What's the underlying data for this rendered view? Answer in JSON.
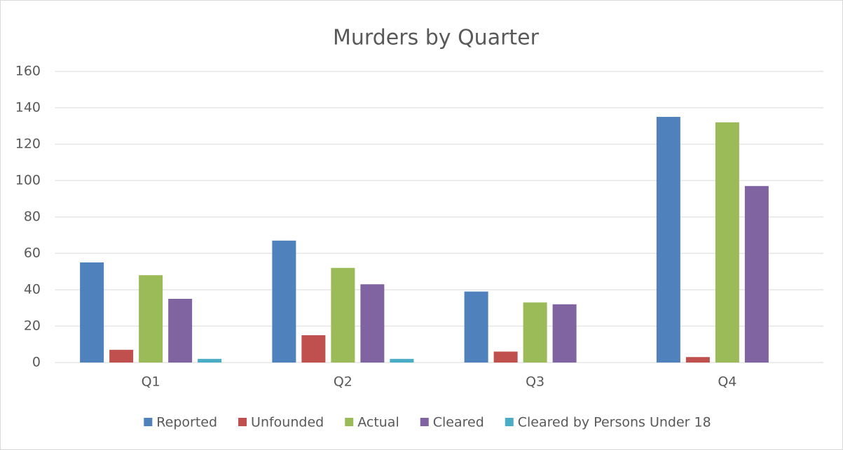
{
  "chart_data": {
    "type": "bar",
    "title": "Murders by Quarter",
    "categories": [
      "Q1",
      "Q2",
      "Q3",
      "Q4"
    ],
    "series": [
      {
        "name": "Reported",
        "color": "#4f81bd",
        "values": [
          55,
          67,
          39,
          135
        ]
      },
      {
        "name": "Unfounded",
        "color": "#c0504d",
        "values": [
          7,
          15,
          6,
          3
        ]
      },
      {
        "name": "Actual",
        "color": "#9bbb59",
        "values": [
          48,
          52,
          33,
          132
        ]
      },
      {
        "name": "Cleared",
        "color": "#8064a2",
        "values": [
          35,
          43,
          32,
          97
        ]
      },
      {
        "name": "Cleared by Persons Under 18",
        "color": "#4bacc6",
        "values": [
          2,
          2,
          0,
          0
        ]
      }
    ],
    "ylim": [
      0,
      160
    ],
    "yticks": [
      0,
      20,
      40,
      60,
      80,
      100,
      120,
      140,
      160
    ],
    "grid": true,
    "legend": "bottom"
  }
}
